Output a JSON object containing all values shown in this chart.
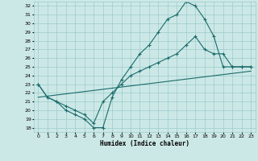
{
  "xlabel": "Humidex (Indice chaleur)",
  "bg_color": "#cce8e6",
  "grid_color": "#99cccc",
  "line_color": "#1a6b6b",
  "xlim": [
    -0.5,
    23.5
  ],
  "ylim": [
    17.5,
    32.5
  ],
  "yticks": [
    18,
    19,
    20,
    21,
    22,
    23,
    24,
    25,
    26,
    27,
    28,
    29,
    30,
    31,
    32
  ],
  "xticks": [
    0,
    1,
    2,
    3,
    4,
    5,
    6,
    7,
    8,
    9,
    10,
    11,
    12,
    13,
    14,
    15,
    16,
    17,
    18,
    19,
    20,
    21,
    22,
    23
  ],
  "series": [
    {
      "x": [
        0,
        1,
        2,
        3,
        4,
        5,
        6,
        7,
        8,
        9,
        10,
        11,
        12,
        13,
        14,
        15,
        16,
        17,
        18,
        19,
        20,
        21,
        22,
        23
      ],
      "y": [
        23.0,
        21.5,
        21.0,
        20.0,
        19.5,
        19.0,
        18.0,
        18.0,
        21.5,
        23.5,
        25.0,
        26.5,
        27.5,
        29.0,
        30.5,
        31.0,
        32.5,
        32.0,
        30.5,
        28.5,
        25.0,
        25.0,
        25.0,
        25.0
      ],
      "has_markers": true
    },
    {
      "x": [
        0,
        1,
        2,
        3,
        4,
        5,
        6,
        7,
        8,
        9,
        10,
        11,
        12,
        13,
        14,
        15,
        16,
        17,
        18,
        19,
        20,
        21,
        22,
        23
      ],
      "y": [
        23.0,
        21.5,
        21.0,
        20.5,
        20.0,
        19.5,
        18.5,
        21.0,
        22.0,
        23.0,
        24.0,
        24.5,
        25.0,
        25.5,
        26.0,
        26.5,
        27.5,
        28.5,
        27.0,
        26.5,
        26.5,
        25.0,
        25.0,
        25.0
      ],
      "has_markers": true
    },
    {
      "x": [
        0,
        23
      ],
      "y": [
        21.5,
        24.5
      ],
      "has_markers": false
    }
  ]
}
